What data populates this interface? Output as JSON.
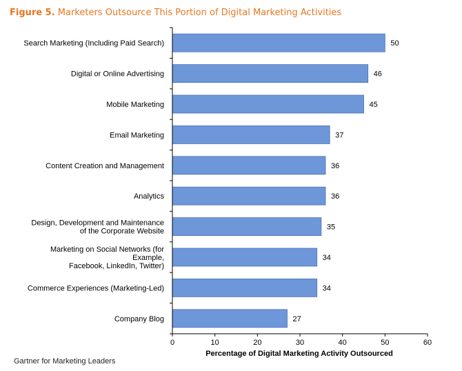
{
  "figure": {
    "label": "Figure 5.",
    "title": "Marketers Outsource This Portion of Digital Marketing Activities",
    "title_color": "#e87722"
  },
  "chart_data": {
    "type": "bar",
    "orientation": "horizontal",
    "categories": [
      [
        "Search Marketing (Including Paid Search)"
      ],
      [
        "Digital or Online Advertising"
      ],
      [
        "Mobile Marketing"
      ],
      [
        "Email Marketing"
      ],
      [
        "Content Creation and Management"
      ],
      [
        "Analytics"
      ],
      [
        "Design, Development and Maintenance",
        "of the Corporate Website"
      ],
      [
        "Marketing on Social Networks (for",
        "Example,",
        "Facebook, LinkedIn, Twitter)"
      ],
      [
        "Commerce Experiences (Marketing-Led)"
      ],
      [
        "Company Blog"
      ]
    ],
    "values": [
      50,
      46,
      45,
      37,
      36,
      36,
      35,
      34,
      34,
      27
    ],
    "xlabel": "Percentage of Digital Marketing Activity Outsourced",
    "ylabel": "",
    "xlim": [
      0,
      60
    ],
    "xticks": [
      0,
      10,
      20,
      30,
      40,
      50,
      60
    ],
    "grid": false,
    "data_labels": true,
    "bar_color": "#6d97d9",
    "bar_border_color": "#4a72b0"
  },
  "source": "Gartner for Marketing Leaders"
}
